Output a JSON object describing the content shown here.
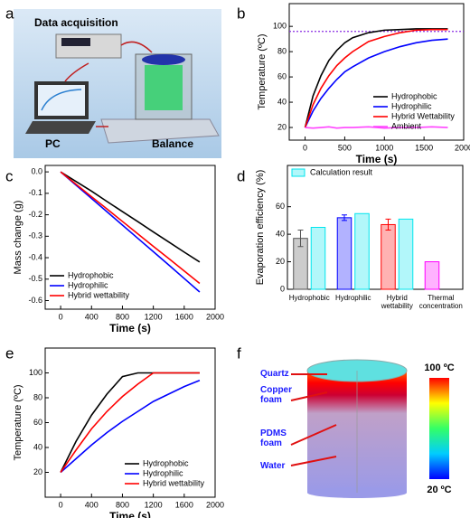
{
  "panel_labels": [
    "a",
    "b",
    "c",
    "d",
    "e",
    "f"
  ],
  "illustration_a": {
    "labels": [
      "Data acquisition",
      "PC",
      "Balance"
    ]
  },
  "illustration_f": {
    "labels": [
      "Quartz",
      "Copper foam",
      "PDMS foam",
      "Water"
    ],
    "colorbar": [
      "100 ºC",
      "20 ºC"
    ]
  },
  "chart_data": [
    {
      "type": "line",
      "xlabel": "Time (s)",
      "ylabel": "Temperature (ºC)",
      "x": [
        0,
        100,
        200,
        300,
        400,
        500,
        600,
        800,
        1000,
        1200,
        1400,
        1600,
        1800
      ],
      "series": [
        {
          "name": "Hydrophobic",
          "color": "#000000",
          "values": [
            20,
            45,
            61,
            73,
            81,
            87,
            91,
            95,
            97,
            97.5,
            98,
            98,
            98
          ]
        },
        {
          "name": "Hydrophilic",
          "color": "#0000ff",
          "values": [
            20,
            33,
            43,
            51,
            58,
            64,
            68,
            75,
            80,
            84,
            87,
            89,
            90
          ]
        },
        {
          "name": "Hybrid Wettability",
          "color": "#ff0000",
          "values": [
            20,
            38,
            51,
            61,
            69,
            75,
            80,
            88,
            92,
            95,
            97,
            97.5,
            97.5
          ]
        },
        {
          "name": "Ambient",
          "color": "#ff44ff",
          "values": [
            20,
            19.5,
            20,
            20.5,
            19.5,
            20,
            20,
            20.5,
            19.5,
            20,
            20,
            20.5,
            20
          ]
        }
      ],
      "hline": 96,
      "hline_color": "#8a2be2",
      "xlim": [
        -200,
        2000
      ],
      "xticks": [
        0,
        500,
        1000,
        1500,
        2000
      ],
      "ylim": [
        10,
        118
      ],
      "yticks": [
        20,
        40,
        60,
        80,
        100
      ],
      "legend": "lower right"
    },
    {
      "type": "line",
      "xlabel": "Time (s)",
      "ylabel": "Mass change (g)",
      "x": [
        0,
        200,
        400,
        600,
        800,
        1000,
        1200,
        1400,
        1600,
        1800
      ],
      "series": [
        {
          "name": "Hydrophobic",
          "color": "#000000",
          "values": [
            0,
            -0.045,
            -0.09,
            -0.138,
            -0.185,
            -0.232,
            -0.28,
            -0.327,
            -0.374,
            -0.42
          ]
        },
        {
          "name": "Hydrophilic",
          "color": "#0000ff",
          "values": [
            0,
            -0.062,
            -0.124,
            -0.186,
            -0.248,
            -0.31,
            -0.372,
            -0.434,
            -0.497,
            -0.56
          ]
        },
        {
          "name": "Hybrid wettability",
          "color": "#ff0000",
          "values": [
            0,
            -0.058,
            -0.116,
            -0.173,
            -0.231,
            -0.289,
            -0.347,
            -0.404,
            -0.462,
            -0.52
          ]
        }
      ],
      "xlim": [
        -200,
        2000
      ],
      "xticks": [
        0,
        400,
        800,
        1200,
        1600,
        2000
      ],
      "ylim": [
        -0.64,
        0.03
      ],
      "yticks": [
        {
          "value": 0,
          "label": "0.0"
        },
        -0.1,
        -0.2,
        -0.3,
        -0.4,
        -0.5,
        -0.6
      ],
      "legend": "lower left"
    },
    {
      "type": "bar",
      "ylabel": "Evaporation efficiency (%)",
      "categories": [
        "Hydrophobic",
        "Hydrophilic",
        "Hybrid wettability",
        "Thermal concentration"
      ],
      "series": [
        {
          "colors": [
            "#555555",
            "#0000ff",
            "#ff0000",
            "#ff00ff"
          ],
          "values": [
            37,
            52,
            47,
            20
          ],
          "errors": [
            6,
            2,
            4,
            null
          ]
        },
        {
          "name": "Calculation result",
          "color": "#00e5ee",
          "values": [
            45,
            55,
            51,
            null
          ]
        }
      ],
      "ylim": [
        0,
        90
      ],
      "yticks": [
        0,
        20,
        40,
        60
      ],
      "legend": "upper left"
    },
    {
      "type": "line",
      "xlabel": "Time (s)",
      "ylabel": "Temperature (ºC)",
      "x": [
        0,
        200,
        400,
        600,
        800,
        1000,
        1200,
        1400,
        1600,
        1800
      ],
      "series": [
        {
          "name": "Hydrophobic",
          "color": "#000000",
          "values": [
            20,
            45,
            66,
            83,
            97,
            100,
            100,
            100,
            100,
            100
          ]
        },
        {
          "name": "Hydrophilic",
          "color": "#0000ff",
          "values": [
            20,
            31,
            42,
            52,
            61,
            69,
            77,
            83,
            89,
            94
          ]
        },
        {
          "name": "Hybrid wettability",
          "color": "#ff0000",
          "values": [
            20,
            38,
            55,
            69,
            81,
            91,
            100,
            100,
            100,
            100
          ]
        }
      ],
      "xlim": [
        -200,
        2000
      ],
      "xticks": [
        0,
        400,
        800,
        1200,
        1600,
        2000
      ],
      "ylim": [
        0,
        120
      ],
      "yticks": [
        20,
        40,
        60,
        80,
        100
      ],
      "legend": "lower right"
    }
  ]
}
